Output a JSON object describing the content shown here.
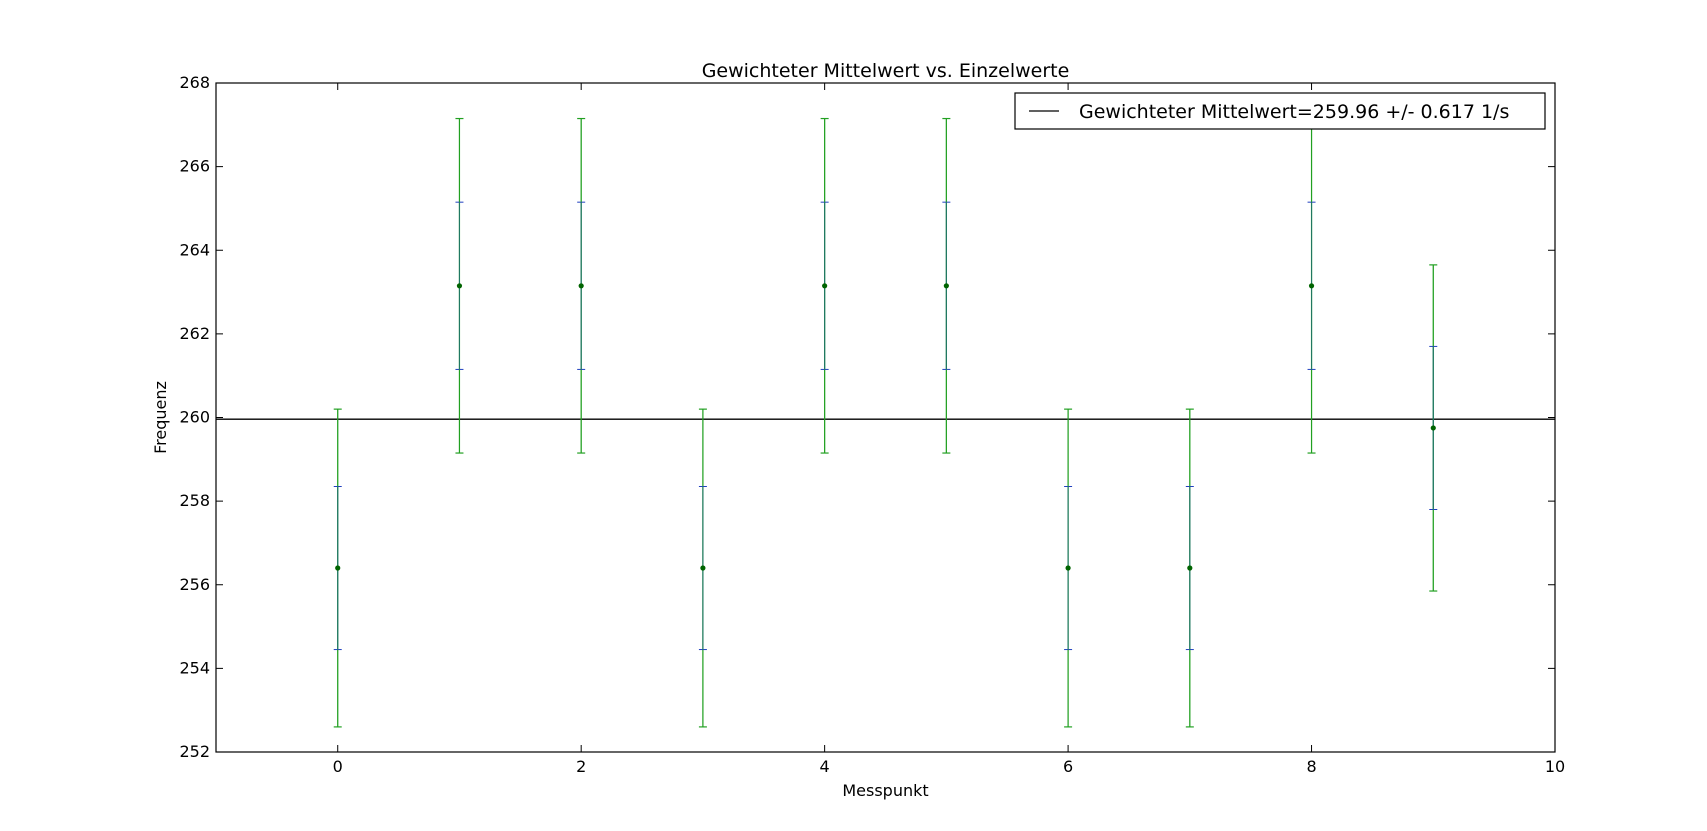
{
  "chart_data": {
    "type": "scatter",
    "title": "Gewichteter Mittelwert vs. Einzelwerte",
    "xlabel": "Messpunkt",
    "ylabel": "Frequenz",
    "xlim": [
      -1,
      10
    ],
    "ylim": [
      252,
      268
    ],
    "xticks": [
      0,
      2,
      4,
      6,
      8,
      10
    ],
    "yticks": [
      252,
      254,
      256,
      258,
      260,
      262,
      264,
      266,
      268
    ],
    "grid": false,
    "legend_position": "top-right",
    "points": {
      "x": [
        0,
        1,
        2,
        3,
        4,
        5,
        6,
        7,
        8,
        9
      ],
      "y": [
        256.4,
        263.15,
        263.15,
        256.4,
        263.15,
        263.15,
        256.4,
        256.4,
        263.15,
        259.75
      ],
      "error_small": [
        1.95,
        2.0,
        2.0,
        1.95,
        2.0,
        2.0,
        1.95,
        1.95,
        2.0,
        1.95
      ],
      "error_large": [
        3.8,
        4.0,
        4.0,
        3.8,
        4.0,
        4.0,
        3.8,
        3.8,
        4.0,
        3.9
      ],
      "marker_color": "#006400",
      "small_error_color": "#1f3fbf",
      "large_error_color": "#22a022"
    },
    "mean_line": {
      "value": 259.96,
      "label": "Gewichteter Mittelwert=259.96 +/- 0.617 1/s",
      "color": "#000000"
    }
  }
}
